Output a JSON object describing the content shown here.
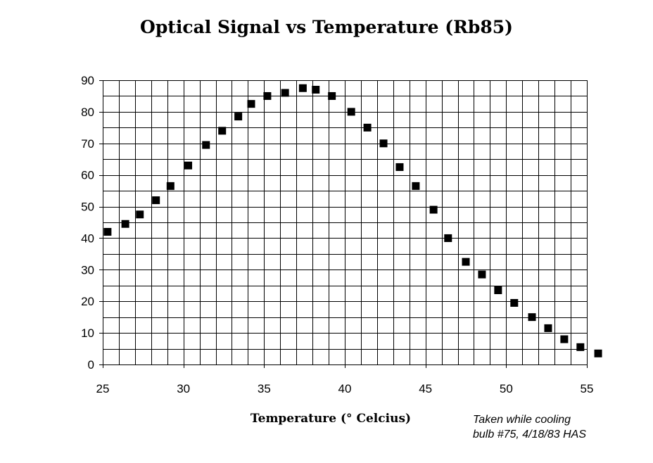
{
  "chart_data": {
    "type": "scatter",
    "title": "Optical Signal vs Temperature (Rb85)",
    "xlabel": "Temperature (° Celcius)",
    "ylabel": "",
    "xlim": [
      25,
      55
    ],
    "ylim": [
      0,
      90
    ],
    "x_ticks": [
      "25",
      "30",
      "35",
      "40",
      "45",
      "50",
      "55"
    ],
    "y_ticks": [
      "0",
      "10",
      "20",
      "30",
      "40",
      "50",
      "60",
      "70",
      "80",
      "90"
    ],
    "grid": true,
    "grid_minor_x": 1,
    "grid_minor_y": 5,
    "marker": "square",
    "marker_color": "#000000",
    "series": [
      {
        "x": [
          25.3,
          26.4,
          27.3,
          28.3,
          29.2,
          30.3,
          31.4,
          32.4,
          33.4,
          34.2,
          35.2,
          36.3,
          37.4,
          38.2,
          39.2,
          40.4,
          41.4,
          42.4,
          43.4,
          44.4,
          45.5,
          46.4,
          47.5,
          48.5,
          49.5,
          50.5,
          51.6,
          52.6,
          53.6,
          54.6,
          55.7
        ],
        "y": [
          42,
          44.5,
          47.5,
          52,
          56.5,
          63,
          69.5,
          74,
          78.5,
          82.5,
          85,
          86,
          87.5,
          87,
          85,
          80,
          75,
          70,
          62.5,
          56.5,
          49,
          40,
          32.5,
          28.5,
          23.5,
          19.5,
          15,
          11.5,
          8,
          5.5,
          3.5
        ]
      }
    ],
    "annotations": [
      "Taken while cooling",
      "bulb #75, 4/18/83 HAS"
    ]
  }
}
